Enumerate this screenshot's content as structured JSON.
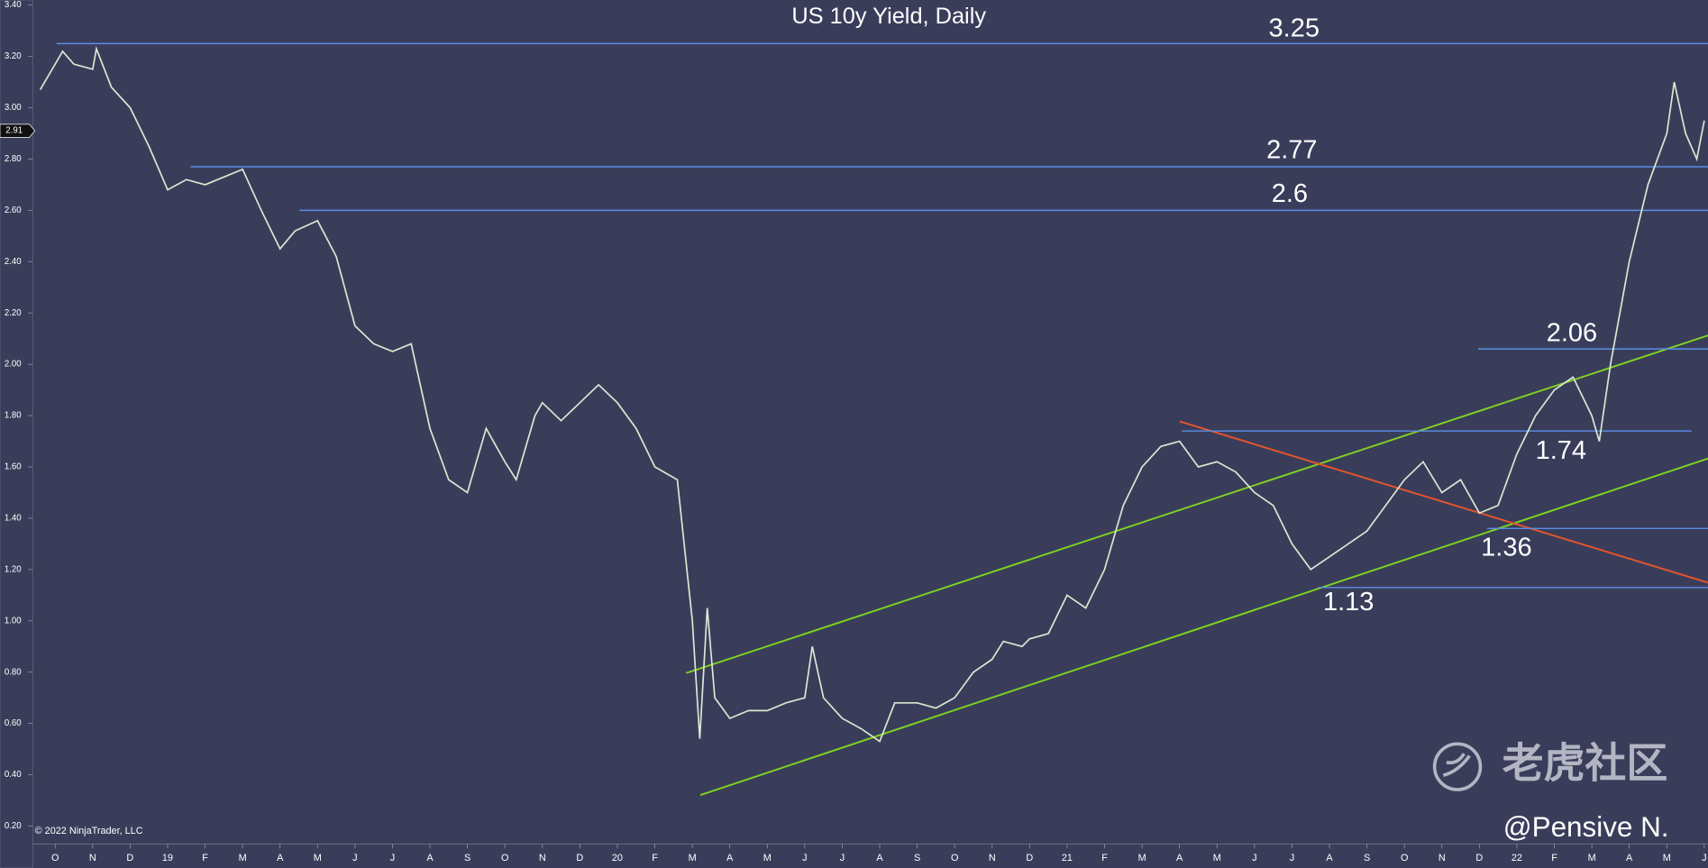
{
  "chart_data": {
    "type": "line",
    "title": "US 10y Yield, Daily",
    "x": [
      -0.4,
      0.2,
      0.5,
      1,
      1.1,
      1.5,
      2,
      2.5,
      3,
      3.5,
      4,
      5,
      5.5,
      6,
      6.4,
      7,
      7.5,
      8,
      8.5,
      9,
      9.5,
      10,
      10.5,
      11,
      11.5,
      12,
      12.3,
      12.8,
      13,
      13.5,
      14,
      14.5,
      15,
      15.5,
      16,
      16.6,
      17,
      17.2,
      17.4,
      17.6,
      18,
      18.5,
      19,
      19.5,
      20,
      20.2,
      20.5,
      21,
      21.5,
      22,
      22.4,
      23,
      23.5,
      24,
      24.5,
      25,
      25.3,
      25.8,
      26,
      26.5,
      27,
      27.5,
      28,
      28.5,
      29,
      29.5,
      30,
      30.5,
      31,
      31.5,
      32,
      32.5,
      33,
      33.5,
      34,
      34.5,
      35,
      35.5,
      36,
      36.5,
      37,
      37.5,
      38,
      38.5,
      39,
      39.5,
      40,
      40.5,
      41,
      41.2,
      41.5,
      42,
      42.5,
      43,
      43.2,
      43.5,
      43.8,
      44
    ],
    "series": [
      {
        "name": "US 10y Yield",
        "color": "#d9e8d2",
        "values": [
          3.07,
          3.22,
          3.17,
          3.15,
          3.23,
          3.08,
          3.0,
          2.85,
          2.68,
          2.72,
          2.7,
          2.76,
          2.6,
          2.45,
          2.52,
          2.56,
          2.42,
          2.15,
          2.08,
          2.05,
          2.08,
          1.75,
          1.55,
          1.5,
          1.75,
          1.62,
          1.55,
          1.8,
          1.85,
          1.78,
          1.85,
          1.92,
          1.85,
          1.75,
          1.6,
          1.55,
          1.0,
          0.54,
          1.05,
          0.7,
          0.62,
          0.65,
          0.65,
          0.68,
          0.7,
          0.9,
          0.7,
          0.62,
          0.58,
          0.53,
          0.68,
          0.68,
          0.66,
          0.7,
          0.8,
          0.85,
          0.92,
          0.9,
          0.93,
          0.95,
          1.1,
          1.05,
          1.2,
          1.45,
          1.6,
          1.68,
          1.7,
          1.6,
          1.62,
          1.58,
          1.5,
          1.45,
          1.3,
          1.2,
          1.25,
          1.3,
          1.35,
          1.45,
          1.55,
          1.62,
          1.5,
          1.55,
          1.42,
          1.45,
          1.65,
          1.8,
          1.9,
          1.95,
          1.8,
          1.7,
          2.0,
          2.4,
          2.7,
          2.9,
          3.1,
          2.9,
          2.8,
          2.95
        ]
      }
    ],
    "xlim": [
      -0.6,
      44.1
    ],
    "xticks": [
      {
        "value": 0,
        "label": "O"
      },
      {
        "value": 1,
        "label": "N"
      },
      {
        "value": 2,
        "label": "D"
      },
      {
        "value": 3,
        "label": "19"
      },
      {
        "value": 4,
        "label": "F"
      },
      {
        "value": 5,
        "label": "M"
      },
      {
        "value": 6,
        "label": "A"
      },
      {
        "value": 7,
        "label": "M"
      },
      {
        "value": 8,
        "label": "J"
      },
      {
        "value": 9,
        "label": "J"
      },
      {
        "value": 10,
        "label": "A"
      },
      {
        "value": 11,
        "label": "S"
      },
      {
        "value": 12,
        "label": "O"
      },
      {
        "value": 13,
        "label": "N"
      },
      {
        "value": 14,
        "label": "D"
      },
      {
        "value": 15,
        "label": "20"
      },
      {
        "value": 16,
        "label": "F"
      },
      {
        "value": 17,
        "label": "M"
      },
      {
        "value": 18,
        "label": "A"
      },
      {
        "value": 19,
        "label": "M"
      },
      {
        "value": 20,
        "label": "J"
      },
      {
        "value": 21,
        "label": "J"
      },
      {
        "value": 22,
        "label": "A"
      },
      {
        "value": 23,
        "label": "S"
      },
      {
        "value": 24,
        "label": "O"
      },
      {
        "value": 25,
        "label": "N"
      },
      {
        "value": 26,
        "label": "D"
      },
      {
        "value": 27,
        "label": "21"
      },
      {
        "value": 28,
        "label": "F"
      },
      {
        "value": 29,
        "label": "M"
      },
      {
        "value": 30,
        "label": "A"
      },
      {
        "value": 31,
        "label": "M"
      },
      {
        "value": 32,
        "label": "J"
      },
      {
        "value": 33,
        "label": "J"
      },
      {
        "value": 34,
        "label": "A"
      },
      {
        "value": 35,
        "label": "S"
      },
      {
        "value": 36,
        "label": "O"
      },
      {
        "value": 37,
        "label": "N"
      },
      {
        "value": 38,
        "label": "D"
      },
      {
        "value": 39,
        "label": "22"
      },
      {
        "value": 40,
        "label": "F"
      },
      {
        "value": 41,
        "label": "M"
      },
      {
        "value": 42,
        "label": "A"
      },
      {
        "value": 43,
        "label": "M"
      },
      {
        "value": 44,
        "label": "J"
      }
    ],
    "ylim": [
      0.13,
      3.42
    ],
    "yticks": [
      {
        "value": 0.2,
        "label": "0.20"
      },
      {
        "value": 0.4,
        "label": "0.40"
      },
      {
        "value": 0.6,
        "label": "0.60"
      },
      {
        "value": 0.8,
        "label": "0.80"
      },
      {
        "value": 1.0,
        "label": "1.00"
      },
      {
        "value": 1.2,
        "label": "1.20"
      },
      {
        "value": 1.4,
        "label": "1.40"
      },
      {
        "value": 1.6,
        "label": "1.60"
      },
      {
        "value": 1.8,
        "label": "1.80"
      },
      {
        "value": 2.0,
        "label": "2.00"
      },
      {
        "value": 2.2,
        "label": "2.20"
      },
      {
        "value": 2.4,
        "label": "2.40"
      },
      {
        "value": 2.6,
        "label": "2.60"
      },
      {
        "value": 2.8,
        "label": "2.80"
      },
      {
        "value": 3.0,
        "label": "3.00"
      },
      {
        "value": 3.2,
        "label": "3.20"
      },
      {
        "value": 3.4,
        "label": "3.40"
      }
    ],
    "last_price": {
      "value": 2.91,
      "label": "2.91"
    },
    "levels": [
      3.25,
      2.77,
      2.6,
      2.06,
      1.74,
      1.36,
      1.13
    ],
    "copyright": "© 2022 NinjaTrader, LLC",
    "watermark": "老虎社区",
    "author": "@Pensive N."
  }
}
